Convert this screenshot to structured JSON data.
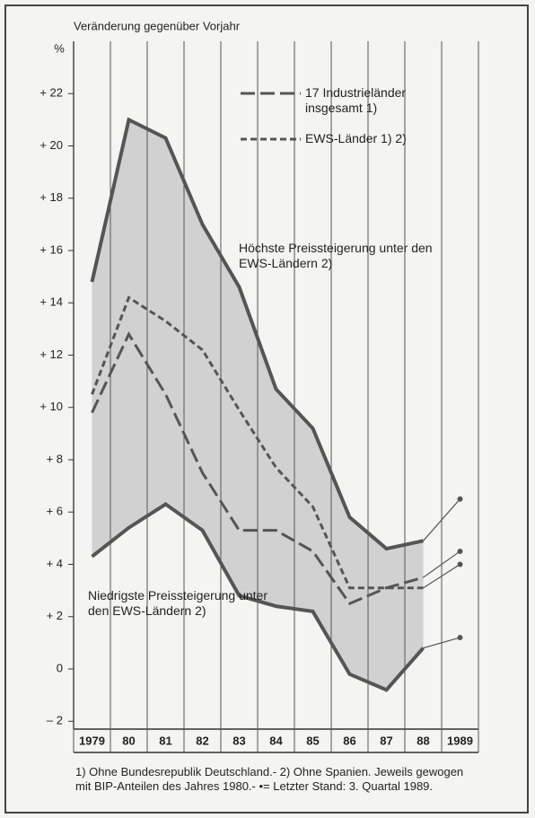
{
  "chart_data": {
    "type": "line",
    "title": "Veränderung gegenüber Vorjahr",
    "ylabel": "%",
    "categories": [
      "1979",
      "80",
      "81",
      "82",
      "83",
      "84",
      "85",
      "86",
      "87",
      "88",
      "1989"
    ],
    "series": [
      {
        "name": "Höchste Preissteigerung unter den EWS-Ländern 2)",
        "color": "#555555",
        "style": "solid",
        "values": [
          14.8,
          21.0,
          20.3,
          17.0,
          14.6,
          10.7,
          9.2,
          5.8,
          4.6,
          4.9,
          6.5
        ]
      },
      {
        "name": "EWS-Länder 1) 2)",
        "color": "#555555",
        "style": "short-dash",
        "values": [
          10.5,
          14.2,
          13.3,
          12.2,
          9.9,
          7.7,
          6.2,
          3.1,
          3.1,
          3.1,
          4.0
        ]
      },
      {
        "name": "17 Industrieländer insgesamt 1)",
        "color": "#555555",
        "style": "long-dash",
        "values": [
          9.8,
          12.8,
          10.5,
          7.5,
          5.3,
          5.3,
          4.5,
          2.5,
          3.1,
          3.5,
          4.5
        ]
      },
      {
        "name": "Niedrigste Preissteigerung unter den EWS-Ländern 2)",
        "color": "#555555",
        "style": "solid",
        "values": [
          4.3,
          5.4,
          6.3,
          5.3,
          2.8,
          2.4,
          2.2,
          -0.2,
          -0.8,
          0.8,
          1.2
        ]
      }
    ],
    "ylim": [
      -2.3,
      24
    ],
    "yticks": [
      {
        "value": -2,
        "label": "– 2"
      },
      0,
      {
        "value": 2,
        "label": "+ 2"
      },
      {
        "value": 4,
        "label": "+ 4"
      },
      {
        "value": 6,
        "label": "+ 6"
      },
      {
        "value": 8,
        "label": "+ 8"
      },
      {
        "value": 10,
        "label": "+ 10"
      },
      {
        "value": 12,
        "label": "+ 12"
      },
      {
        "value": 14,
        "label": "+ 14"
      },
      {
        "value": 16,
        "label": "+ 16"
      },
      {
        "value": 18,
        "label": "+ 18"
      },
      {
        "value": 20,
        "label": "+ 20"
      },
      {
        "value": 22,
        "label": "+ 22"
      }
    ],
    "grid": "vertical",
    "band_color": "#c8c8c8",
    "footnote": "1) Ohne Bundesrepublik Deutschland.- 2) Ohne Spanien. Jeweils gewogen mit BIP-Anteilen des Jahres 1980.- •= Letzter Stand: 3. Quartal 1989."
  }
}
